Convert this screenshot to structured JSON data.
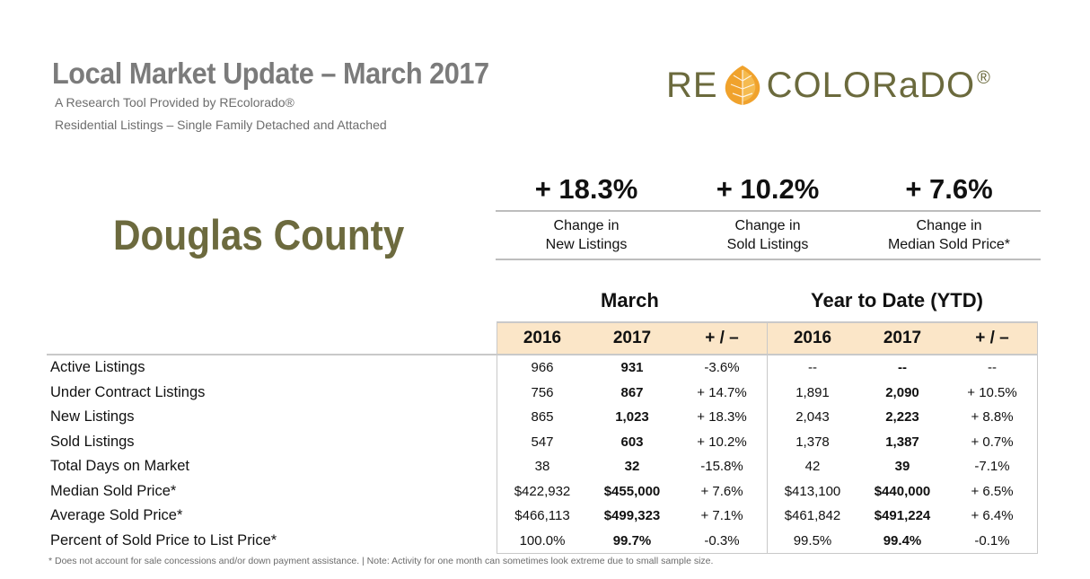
{
  "header": {
    "title": "Local Market Update – March 2017",
    "subtitle1": "A Research Tool Provided by REcolorado®",
    "subtitle2": "Residential Listings – Single Family Detached and Attached"
  },
  "logo": {
    "left": "RE",
    "right": "COLORaDO",
    "reg": "®",
    "colors": {
      "text": "#6b6a3d",
      "leaf": "#f0a22c"
    }
  },
  "county": "Douglas County",
  "kpis": [
    {
      "value": "+ 18.3%",
      "line1": "Change in",
      "line2": "New Listings"
    },
    {
      "value": "+ 10.2%",
      "line1": "Change in",
      "line2": "Sold Listings"
    },
    {
      "value": "+ 7.6%",
      "line1": "Change in",
      "line2": "Median Sold Price*"
    }
  ],
  "sections": {
    "month": "March",
    "ytd": "Year to Date (YTD)"
  },
  "table": {
    "columns": [
      "2016",
      "2017",
      "+ / –",
      "2016",
      "2017",
      "+ / –"
    ],
    "rows": [
      {
        "label": "Active Listings",
        "values": [
          "966",
          "931",
          "-3.6%",
          "--",
          "--",
          "--"
        ]
      },
      {
        "label": "Under Contract Listings",
        "values": [
          "756",
          "867",
          "+ 14.7%",
          "1,891",
          "2,090",
          "+ 10.5%"
        ]
      },
      {
        "label": "New Listings",
        "values": [
          "865",
          "1,023",
          "+ 18.3%",
          "2,043",
          "2,223",
          "+ 8.8%"
        ]
      },
      {
        "label": "Sold Listings",
        "values": [
          "547",
          "603",
          "+ 10.2%",
          "1,378",
          "1,387",
          "+ 0.7%"
        ]
      },
      {
        "label": "Total Days on Market",
        "values": [
          "38",
          "32",
          "-15.8%",
          "42",
          "39",
          "-7.1%"
        ]
      },
      {
        "label": "Median Sold Price*",
        "values": [
          "$422,932",
          "$455,000",
          "+ 7.6%",
          "$413,100",
          "$440,000",
          "+ 6.5%"
        ]
      },
      {
        "label": "Average Sold Price*",
        "values": [
          "$466,113",
          "$499,323",
          "+ 7.1%",
          "$461,842",
          "$491,224",
          "+ 6.4%"
        ]
      },
      {
        "label": "Percent of Sold Price to List Price*",
        "values": [
          "100.0%",
          "99.7%",
          "-0.3%",
          "99.5%",
          "99.4%",
          "-0.1%"
        ]
      }
    ]
  },
  "footnote": "* Does not account for sale concessions and/or down payment assistance.  |  Note: Activity for one month can sometimes look extreme due to small sample size."
}
